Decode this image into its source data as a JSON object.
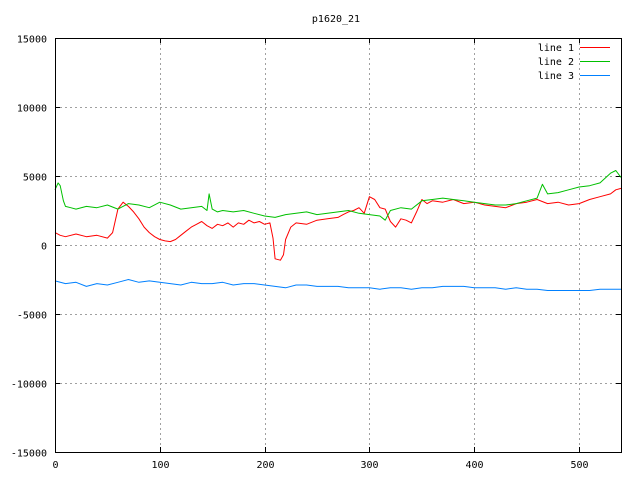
{
  "chart_data": {
    "type": "line",
    "title": "p1620_21",
    "xlabel": "",
    "ylabel": "",
    "xlim": [
      0,
      540
    ],
    "ylim": [
      -15000,
      15000
    ],
    "xticks": [
      0,
      100,
      200,
      300,
      400,
      500
    ],
    "yticks": [
      -15000,
      -10000,
      -5000,
      0,
      5000,
      10000,
      15000
    ],
    "grid": true,
    "legend_position": "top-right",
    "series": [
      {
        "name": "line 1",
        "color": "#ff0000",
        "x": [
          0,
          5,
          10,
          20,
          30,
          40,
          50,
          55,
          60,
          65,
          70,
          75,
          80,
          85,
          90,
          95,
          100,
          105,
          110,
          115,
          120,
          125,
          130,
          135,
          140,
          145,
          150,
          155,
          160,
          165,
          170,
          175,
          180,
          185,
          190,
          195,
          200,
          205,
          208,
          210,
          215,
          218,
          220,
          225,
          230,
          240,
          250,
          260,
          270,
          275,
          280,
          285,
          290,
          295,
          300,
          305,
          310,
          315,
          320,
          325,
          330,
          335,
          340,
          345,
          350,
          355,
          360,
          370,
          380,
          390,
          400,
          410,
          420,
          430,
          440,
          450,
          460,
          470,
          480,
          490,
          500,
          510,
          520,
          530,
          535,
          540
        ],
        "y": [
          900,
          700,
          600,
          800,
          600,
          700,
          500,
          900,
          2600,
          3100,
          2800,
          2400,
          1900,
          1300,
          900,
          600,
          400,
          300,
          250,
          400,
          700,
          1000,
          1300,
          1500,
          1700,
          1400,
          1200,
          1500,
          1400,
          1600,
          1300,
          1600,
          1500,
          1800,
          1600,
          1700,
          1500,
          1600,
          500,
          -1000,
          -1100,
          -700,
          400,
          1300,
          1600,
          1500,
          1800,
          1900,
          2000,
          2200,
          2400,
          2500,
          2700,
          2300,
          3500,
          3300,
          2700,
          2600,
          1700,
          1300,
          1900,
          1800,
          1600,
          2400,
          3300,
          3000,
          3200,
          3100,
          3300,
          3000,
          3100,
          2900,
          2800,
          2700,
          3000,
          3100,
          3300,
          3000,
          3100,
          2900,
          3000,
          3300,
          3500,
          3700,
          4000,
          4100
        ]
      },
      {
        "name": "line 2",
        "color": "#00c000",
        "x": [
          0,
          3,
          5,
          8,
          10,
          15,
          20,
          30,
          40,
          50,
          60,
          70,
          80,
          90,
          100,
          110,
          120,
          130,
          140,
          145,
          147,
          150,
          155,
          160,
          170,
          180,
          190,
          200,
          210,
          220,
          230,
          240,
          250,
          260,
          270,
          280,
          290,
          300,
          310,
          315,
          320,
          330,
          340,
          350,
          360,
          370,
          380,
          390,
          400,
          410,
          420,
          430,
          440,
          450,
          460,
          465,
          470,
          480,
          490,
          500,
          510,
          520,
          530,
          535,
          540
        ],
        "y": [
          4000,
          4500,
          4300,
          3200,
          2800,
          2700,
          2600,
          2800,
          2700,
          2900,
          2600,
          3000,
          2900,
          2700,
          3100,
          2900,
          2600,
          2700,
          2800,
          2500,
          3700,
          2600,
          2400,
          2500,
          2400,
          2500,
          2300,
          2100,
          2000,
          2200,
          2300,
          2400,
          2200,
          2300,
          2400,
          2500,
          2300,
          2200,
          2100,
          1800,
          2500,
          2700,
          2600,
          3200,
          3300,
          3400,
          3300,
          3200,
          3100,
          3000,
          2900,
          2900,
          3000,
          3200,
          3400,
          4400,
          3700,
          3800,
          4000,
          4200,
          4300,
          4500,
          5200,
          5400,
          4900
        ]
      },
      {
        "name": "line 3",
        "color": "#0080ff",
        "x": [
          0,
          10,
          20,
          30,
          40,
          50,
          60,
          70,
          80,
          90,
          100,
          110,
          120,
          130,
          140,
          150,
          160,
          170,
          180,
          190,
          200,
          210,
          220,
          230,
          240,
          250,
          260,
          270,
          280,
          290,
          300,
          310,
          320,
          330,
          340,
          350,
          360,
          370,
          380,
          390,
          400,
          410,
          420,
          430,
          440,
          450,
          460,
          470,
          480,
          490,
          500,
          510,
          520,
          530,
          540
        ],
        "y": [
          -2600,
          -2800,
          -2700,
          -3000,
          -2800,
          -2900,
          -2700,
          -2500,
          -2700,
          -2600,
          -2700,
          -2800,
          -2900,
          -2700,
          -2800,
          -2800,
          -2700,
          -2900,
          -2800,
          -2800,
          -2900,
          -3000,
          -3100,
          -2900,
          -2900,
          -3000,
          -3000,
          -3000,
          -3100,
          -3100,
          -3100,
          -3200,
          -3100,
          -3100,
          -3200,
          -3100,
          -3100,
          -3000,
          -3000,
          -3000,
          -3100,
          -3100,
          -3100,
          -3200,
          -3100,
          -3200,
          -3200,
          -3300,
          -3300,
          -3300,
          -3300,
          -3300,
          -3200,
          -3200,
          -3200
        ]
      }
    ]
  }
}
